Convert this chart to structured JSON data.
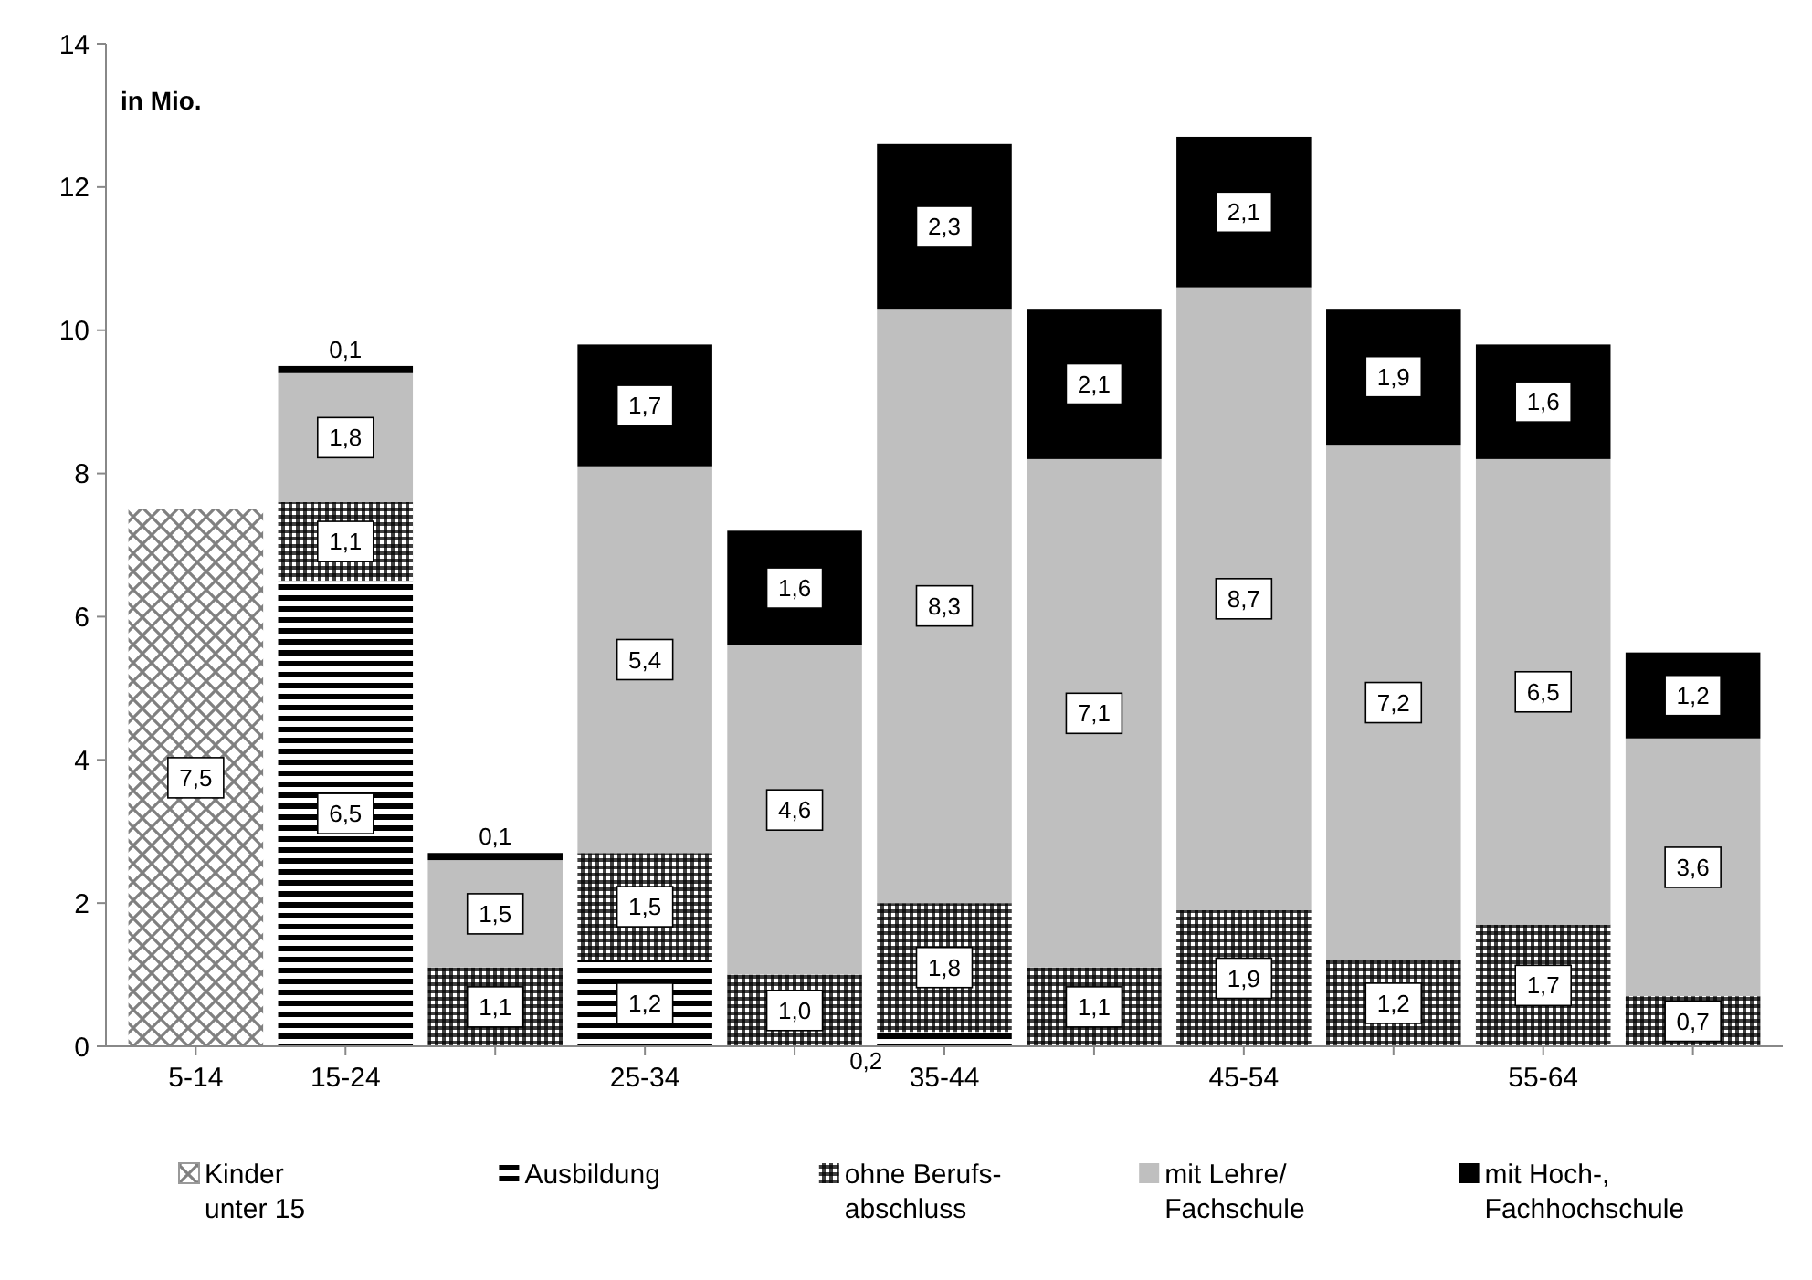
{
  "chart_data": {
    "type": "bar",
    "stacked": true,
    "categories": [
      "5-14",
      "15-24",
      null,
      "25-34",
      null,
      "35-44",
      null,
      "45-54",
      null,
      "55-64",
      null
    ],
    "ylim": [
      0,
      14
    ],
    "yticks": [
      0,
      2,
      4,
      6,
      8,
      10,
      12,
      14
    ],
    "grid": false,
    "legend": "bottom",
    "annotations": [
      "in Mio."
    ],
    "series": [
      {
        "name": "Kinder\nunter 15",
        "color": "#808080",
        "values": [
          7.5,
          null,
          null,
          null,
          null,
          null,
          null,
          null,
          null,
          null,
          null
        ],
        "value_labels": [
          "7,5",
          null,
          null,
          null,
          null,
          null,
          null,
          null,
          null,
          null,
          null
        ]
      },
      {
        "name": "Ausbildung",
        "color": "#000000",
        "values": [
          null,
          6.5,
          null,
          1.2,
          null,
          0.2,
          null,
          null,
          null,
          null,
          null
        ],
        "value_labels": [
          null,
          "6,5",
          null,
          "1,2",
          null,
          "0,2",
          null,
          null,
          null,
          null,
          null
        ]
      },
      {
        "name": "ohne Berufs-\nabschluss",
        "color": "#404040",
        "values": [
          null,
          1.1,
          1.1,
          1.5,
          1.0,
          1.8,
          1.1,
          1.9,
          1.2,
          1.7,
          0.7
        ],
        "value_labels": [
          null,
          "1,1",
          "1,1",
          "1,5",
          "1,0",
          "1,8",
          "1,1",
          "1,9",
          "1,2",
          "1,7",
          "0,7"
        ]
      },
      {
        "name": "mit Lehre/\nFachschule",
        "color": "#bfbfbf",
        "values": [
          null,
          1.8,
          1.5,
          5.4,
          4.6,
          8.3,
          7.1,
          8.7,
          7.2,
          6.5,
          3.6
        ],
        "value_labels": [
          null,
          "1,8",
          "1,5",
          "5,4",
          "4,6",
          "8,3",
          "7,1",
          "8,7",
          "7,2",
          "6,5",
          "3,6"
        ]
      },
      {
        "name": "mit Hoch-,\nFachhochschule",
        "color": "#000000",
        "values": [
          null,
          0.1,
          0.1,
          1.7,
          1.6,
          2.3,
          2.1,
          2.1,
          1.9,
          1.6,
          1.2
        ],
        "value_labels": [
          null,
          "0,1",
          "0,1",
          "1,7",
          "1,6",
          "2,3",
          "2,1",
          "2,1",
          "1,9",
          "1,6",
          "1,2"
        ]
      }
    ]
  }
}
